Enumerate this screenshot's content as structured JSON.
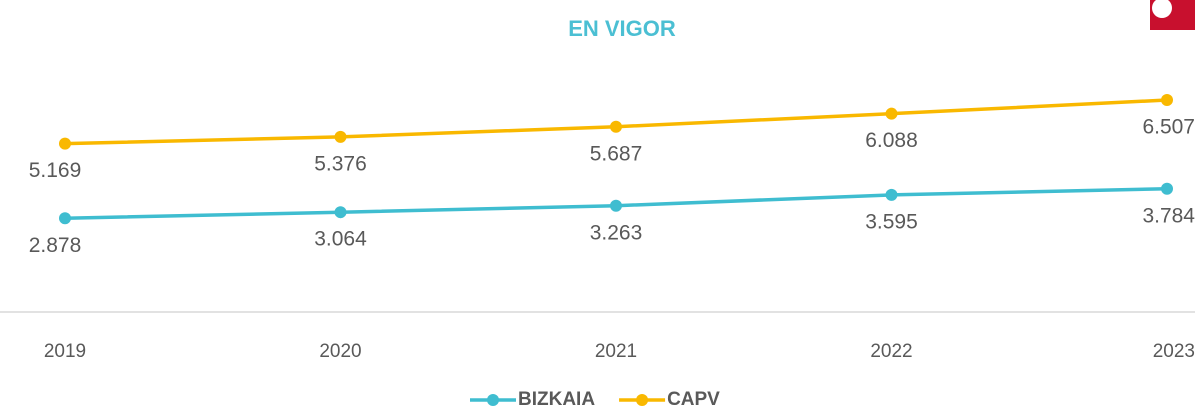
{
  "chart_data": {
    "type": "line",
    "title": "EN VIGOR",
    "categories": [
      "2019",
      "2020",
      "2021",
      "2022",
      "2023"
    ],
    "series": [
      {
        "name": "BIZKAIA",
        "color": "#3fbdd0",
        "values": [
          2878,
          3064,
          3263,
          3595,
          3784
        ],
        "value_labels": [
          "2.878",
          "3.064",
          "3.263",
          "3.595",
          "3.784"
        ]
      },
      {
        "name": "CAPV",
        "color": "#f9b800",
        "values": [
          5169,
          5376,
          5687,
          6088,
          6507
        ],
        "value_labels": [
          "5.169",
          "5.376",
          "5.687",
          "6.088",
          "6.507"
        ]
      }
    ],
    "ylim": [
      0,
      8000
    ],
    "legend": "bottom"
  }
}
